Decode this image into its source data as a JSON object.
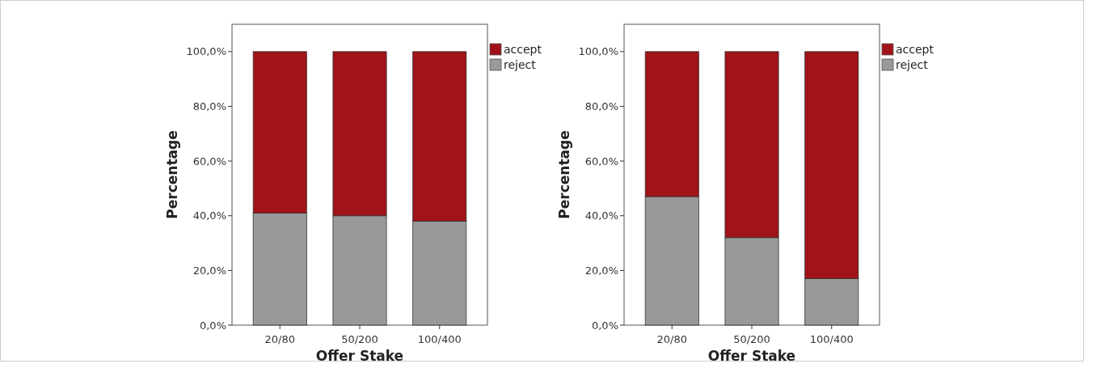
{
  "chart_data": [
    {
      "type": "bar",
      "stacked": true,
      "xlabel": "Offer Stake",
      "ylabel": "Percentage",
      "categories": [
        "20/80",
        "50/200",
        "100/400"
      ],
      "series": [
        {
          "name": "reject",
          "color": "#999999",
          "values": [
            41,
            40,
            38
          ]
        },
        {
          "name": "accept",
          "color": "#a01319",
          "values": [
            59,
            60,
            62
          ]
        }
      ],
      "ylim": [
        0,
        110
      ],
      "yticks": [
        {
          "value": 0,
          "label": "0,0%"
        },
        {
          "value": 20,
          "label": "20,0%"
        },
        {
          "value": 40,
          "label": "40,0%"
        },
        {
          "value": 60,
          "label": "60,0%"
        },
        {
          "value": 80,
          "label": "80,0%"
        },
        {
          "value": 100,
          "label": "100,0%"
        }
      ],
      "legend": "top right",
      "grid": false
    },
    {
      "type": "bar",
      "stacked": true,
      "xlabel": "Offer Stake",
      "ylabel": "Percentage",
      "categories": [
        "20/80",
        "50/200",
        "100/400"
      ],
      "series": [
        {
          "name": "reject",
          "color": "#999999",
          "values": [
            47,
            32,
            17
          ]
        },
        {
          "name": "accept",
          "color": "#a01319",
          "values": [
            53,
            68,
            83
          ]
        }
      ],
      "ylim": [
        0,
        110
      ],
      "yticks": [
        {
          "value": 0,
          "label": "0,0%"
        },
        {
          "value": 20,
          "label": "20,0%"
        },
        {
          "value": 40,
          "label": "40,0%"
        },
        {
          "value": 60,
          "label": "60,0%"
        },
        {
          "value": 80,
          "label": "80,0%"
        },
        {
          "value": 100,
          "label": "100,0%"
        }
      ],
      "legend": "top right",
      "grid": false
    }
  ]
}
